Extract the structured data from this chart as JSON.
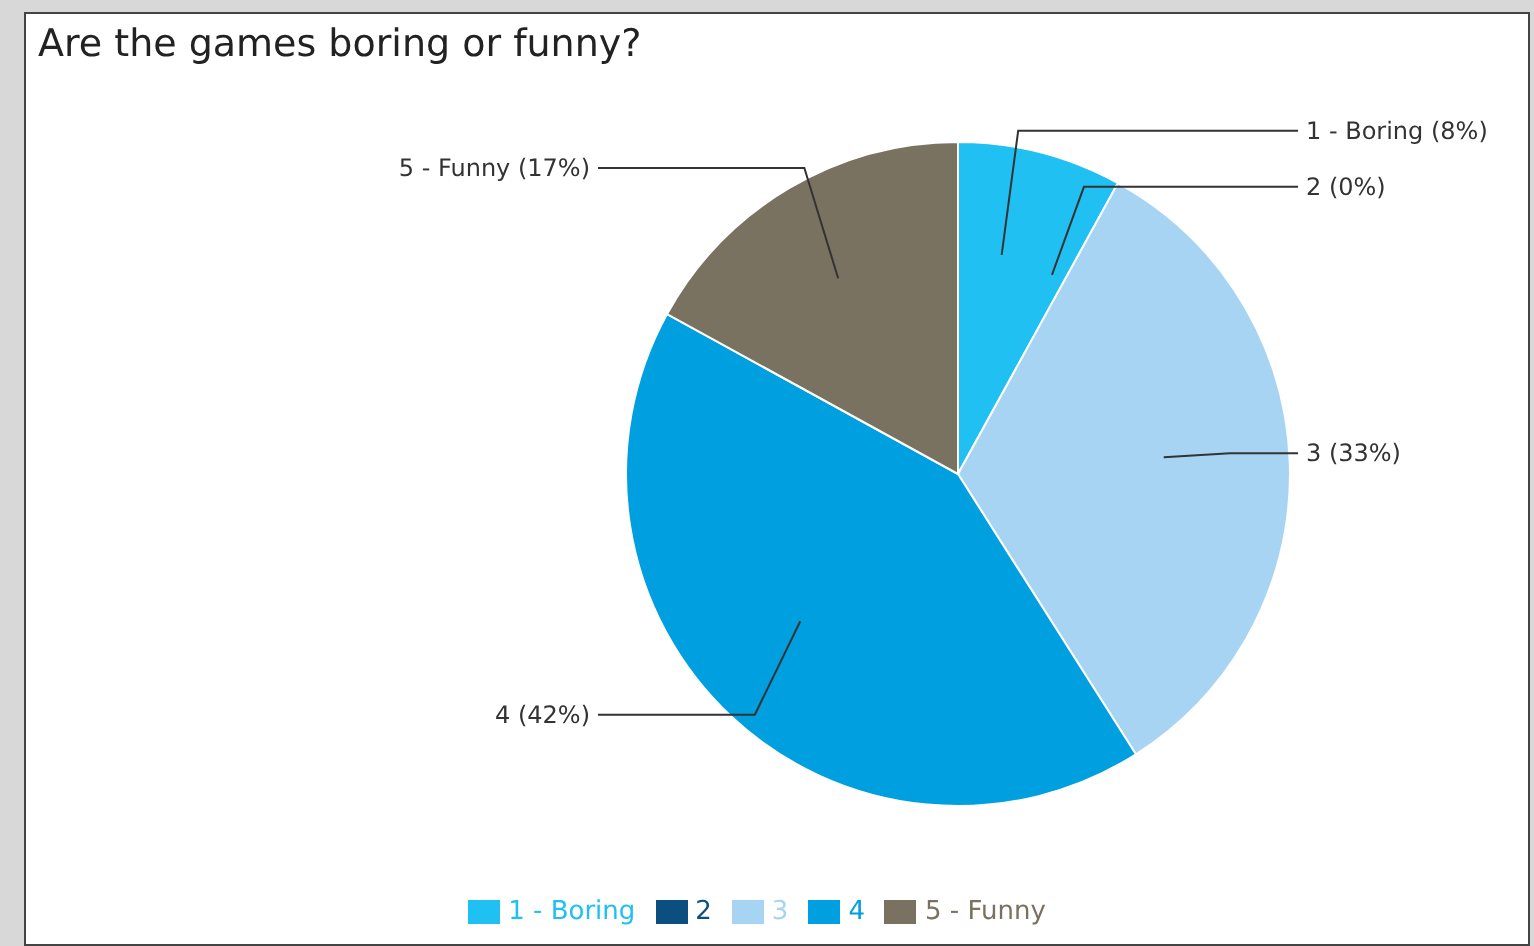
{
  "chart_data": {
    "type": "pie",
    "title": "Are the games boring or funny?",
    "categories": [
      "1 - Boring",
      "2",
      "3",
      "4",
      "5 - Funny"
    ],
    "values": [
      8,
      0,
      33,
      42,
      17
    ],
    "value_labels": [
      "1 - Boring (8%)",
      "2 (0%)",
      "3 (33%)",
      "4 (42%)",
      "5 - Funny (17%)"
    ],
    "colors": [
      "#20c0f2",
      "#0b4f7f",
      "#a8d4f4",
      "#009fe0",
      "#7a7260"
    ],
    "legend": "bottom"
  }
}
